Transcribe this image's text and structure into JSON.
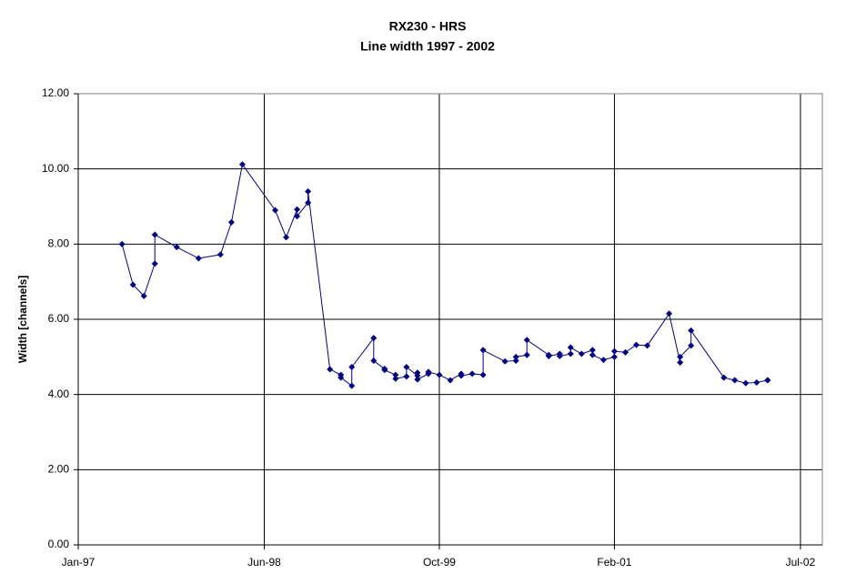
{
  "chart_data": {
    "type": "line",
    "title": "RX230 - HRS",
    "subtitle": "Line width 1997 - 2002",
    "y_label": "Width [channels]",
    "xlim": [
      "1997-01",
      "2002-09"
    ],
    "xticks": [
      {
        "value": "1997-01",
        "label": "Jan-97"
      },
      {
        "value": "1998-06",
        "label": "Jun-98"
      },
      {
        "value": "1999-10",
        "label": "Oct-99"
      },
      {
        "value": "2001-02",
        "label": "Feb-01"
      },
      {
        "value": "2002-07",
        "label": "Jul-02"
      }
    ],
    "ylim": [
      0,
      12
    ],
    "yticks": [
      {
        "value": 0,
        "label": "0.00"
      },
      {
        "value": 2,
        "label": "2.00"
      },
      {
        "value": 4,
        "label": "4.00"
      },
      {
        "value": 6,
        "label": "6.00"
      },
      {
        "value": 8,
        "label": "8.00"
      },
      {
        "value": 10,
        "label": "10.00"
      },
      {
        "value": 12,
        "label": "12.00"
      }
    ],
    "grid": true,
    "color": "#000080",
    "x": [
      "1997-05",
      "1997-06",
      "1997-07",
      "1997-08",
      "1997-08",
      "1997-10",
      "1997-12",
      "1998-02",
      "1998-03",
      "1998-04",
      "1998-07",
      "1998-08",
      "1998-09",
      "1998-09",
      "1998-10",
      "1998-10",
      "1998-12",
      "1999-01",
      "1999-01",
      "1999-02",
      "1999-02",
      "1999-04",
      "1999-04",
      "1999-05",
      "1999-05",
      "1999-06",
      "1999-06",
      "1999-07",
      "1999-07",
      "1999-08",
      "1999-08",
      "1999-08",
      "1999-09",
      "1999-09",
      "1999-10",
      "1999-11",
      "1999-12",
      "1999-12",
      "2000-01",
      "2000-02",
      "2000-02",
      "2000-04",
      "2000-05",
      "2000-05",
      "2000-06",
      "2000-06",
      "2000-08",
      "2000-08",
      "2000-09",
      "2000-09",
      "2000-10",
      "2000-10",
      "2000-11",
      "2000-12",
      "2000-12",
      "2001-01",
      "2001-02",
      "2001-02",
      "2001-03",
      "2001-04",
      "2001-05",
      "2001-07",
      "2001-08",
      "2001-08",
      "2001-09",
      "2001-09",
      "2001-12",
      "2002-01",
      "2002-02",
      "2002-03",
      "2002-04",
      "2002-04"
    ],
    "values": [
      8.0,
      6.92,
      6.62,
      7.48,
      8.25,
      7.92,
      7.62,
      7.72,
      8.58,
      10.12,
      8.9,
      8.18,
      8.92,
      8.74,
      9.1,
      9.4,
      4.67,
      4.52,
      4.45,
      4.23,
      4.73,
      5.5,
      4.9,
      4.68,
      4.65,
      4.52,
      4.42,
      4.48,
      4.73,
      4.5,
      4.58,
      4.4,
      4.55,
      4.6,
      4.52,
      4.38,
      4.55,
      4.5,
      4.55,
      4.52,
      5.18,
      4.88,
      4.9,
      5.0,
      5.05,
      5.45,
      5.05,
      5.02,
      5.08,
      5.02,
      5.08,
      5.25,
      5.08,
      5.18,
      5.05,
      4.92,
      5.0,
      5.15,
      5.12,
      5.32,
      5.3,
      6.15,
      4.85,
      5.0,
      5.3,
      5.7,
      4.45,
      4.38,
      4.3,
      4.32,
      4.38,
      4.38
    ]
  }
}
